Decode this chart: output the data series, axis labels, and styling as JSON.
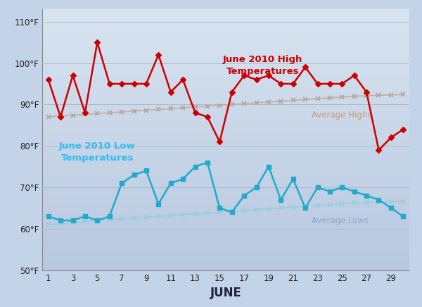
{
  "days": [
    1,
    2,
    3,
    4,
    5,
    6,
    7,
    8,
    9,
    10,
    11,
    12,
    13,
    14,
    15,
    16,
    17,
    18,
    19,
    20,
    21,
    22,
    23,
    24,
    25,
    26,
    27,
    28,
    29,
    30
  ],
  "highs": [
    96,
    87,
    97,
    88,
    105,
    95,
    95,
    95,
    95,
    102,
    93,
    96,
    88,
    87,
    81,
    93,
    97,
    96,
    97,
    95,
    95,
    99,
    95,
    95,
    95,
    97,
    93,
    79,
    82,
    84
  ],
  "lows": [
    63,
    62,
    62,
    63,
    62,
    63,
    71,
    73,
    74,
    66,
    71,
    72,
    75,
    76,
    65,
    64,
    68,
    70,
    75,
    67,
    72,
    65,
    70,
    69,
    70,
    69,
    68,
    67,
    65,
    63
  ],
  "avg_highs": [
    87.0,
    87.2,
    87.4,
    87.6,
    87.8,
    88.0,
    88.2,
    88.4,
    88.6,
    88.8,
    89.0,
    89.2,
    89.4,
    89.6,
    89.8,
    90.0,
    90.2,
    90.4,
    90.6,
    90.8,
    91.0,
    91.2,
    91.4,
    91.6,
    91.8,
    92.0,
    92.1,
    92.2,
    92.3,
    92.4
  ],
  "avg_lows": [
    61.0,
    61.2,
    61.5,
    61.8,
    62.0,
    62.2,
    62.4,
    62.6,
    62.8,
    63.0,
    63.2,
    63.4,
    63.6,
    63.8,
    64.0,
    64.2,
    64.4,
    64.6,
    64.8,
    65.0,
    65.2,
    65.4,
    65.6,
    65.8,
    66.0,
    66.2,
    66.3,
    66.4,
    66.5,
    66.6
  ],
  "high_color": "#cc0000",
  "low_color": "#22aacc",
  "avg_high_line_color": "#ccaa99",
  "avg_high_marker_color": "#aaaaaa",
  "avg_low_line_color": "#99ccdd",
  "avg_low_marker_color": "#99ccdd",
  "bg_color": "#c4d4e8",
  "title_high": "June 2010 High\nTemperatures",
  "title_low": "June 2010 Low\nTemperatures",
  "label_avg_high": "Average Highs",
  "label_avg_low": "Average Lows",
  "xlabel": "JUNE",
  "ylim": [
    50,
    113
  ],
  "yticks": [
    50,
    60,
    70,
    80,
    90,
    100,
    110
  ],
  "ytick_labels": [
    "50°F",
    "60°F",
    "70°F",
    "80°F",
    "90°F",
    "100°F",
    "110°F"
  ],
  "xticks": [
    1,
    3,
    5,
    7,
    9,
    11,
    13,
    15,
    17,
    19,
    21,
    23,
    25,
    27,
    29
  ]
}
